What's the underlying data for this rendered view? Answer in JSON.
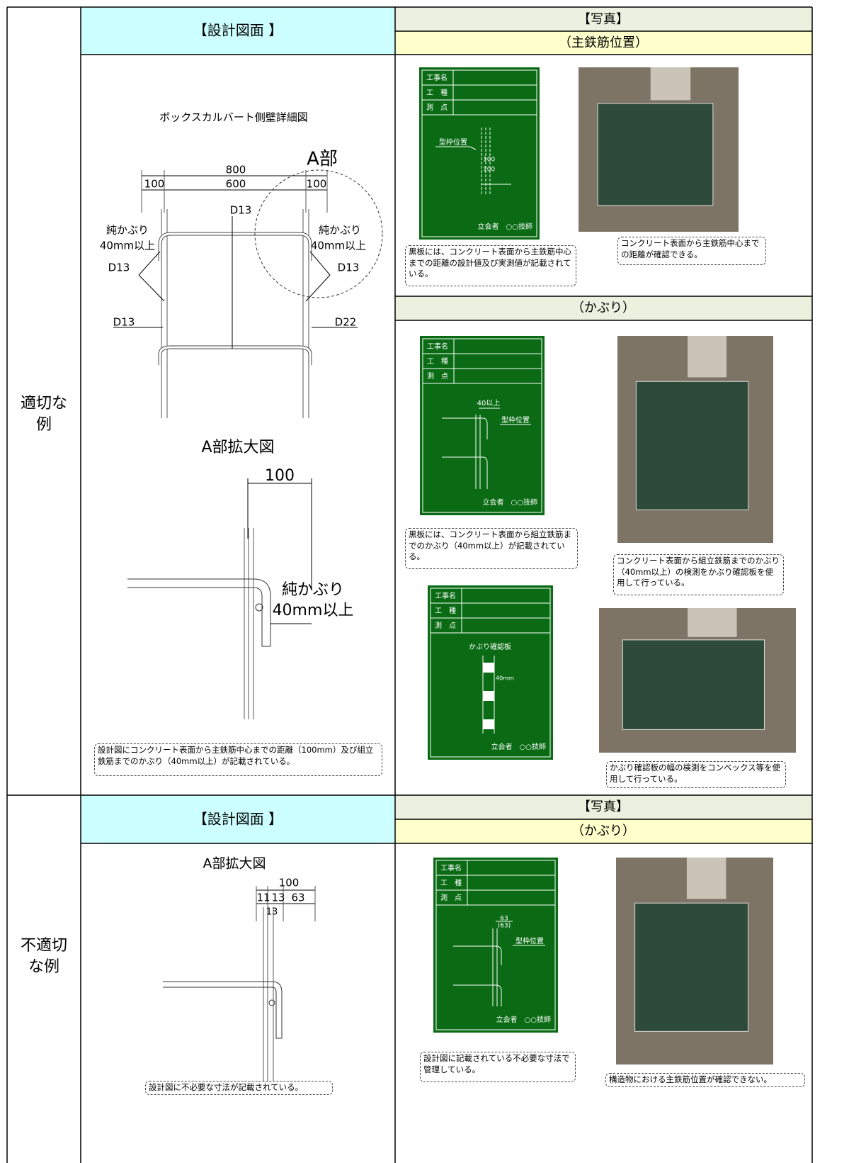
{
  "examples": [
    {
      "label": "適切な例",
      "design": {
        "header": "【設計図面 】",
        "title": "ボックスカルバート側壁詳細図",
        "section_labels": [
          "A部",
          "800",
          "100",
          "600",
          "100",
          "D13",
          "純かぶり",
          "40mm以上",
          "純かぶり",
          "40mm以上",
          "D13",
          "D13",
          "D13",
          "D22"
        ],
        "detail_title": "A部拡大図",
        "detail_labels": [
          "100",
          "純かぶり",
          "40mm以上"
        ],
        "note": "設計図にコンクリート表面から主鉄筋中心までの距離（100mm）及び組立鉄筋までのかぶり（40mm以上）が記載されている。"
      },
      "photos": {
        "header": "【写真】",
        "groups": [
          {
            "subheader": "（主鉄筋位置）",
            "items": [
              {
                "board": {
                  "fields": [
                    "工事名",
                    "工　種",
                    "測　点"
                  ],
                  "labels": [
                    "型枠位置",
                    "100",
                    "100"
                  ],
                  "witness": "立会者　○○技師"
                },
                "caption": "黒板には、コンクリート表面から主鉄筋中心までの距離の設計値及び実測値が記載されている。",
                "photo_caption": "コンクリート表面から主鉄筋中心までの距離が確認できる。"
              }
            ]
          },
          {
            "subheader": "（かぶり）",
            "items": [
              {
                "board": {
                  "fields": [
                    "工事名",
                    "工　種",
                    "測　点"
                  ],
                  "labels": [
                    "40以上",
                    "型枠位置"
                  ],
                  "witness": "立会者　○○技師"
                },
                "caption": "黒板には、コンクリート表面から組立鉄筋までのかぶり（40mm以上）が記載されている。",
                "photo_caption": "コンクリート表面から組立鉄筋までのかぶり（40mm以上）の検測をかぶり確認板を使用して行っている。"
              },
              {
                "board": {
                  "fields": [
                    "工事名",
                    "工　種",
                    "測　点"
                  ],
                  "labels": [
                    "かぶり確認板",
                    "40mm"
                  ],
                  "witness": "立会者　○○技師"
                },
                "photo_caption": "かぶり確認板の幅の検測をコンベックス等を使用して行っている。"
              }
            ]
          }
        ]
      }
    },
    {
      "label": "不適切な例",
      "design": {
        "header": "【設計図面 】",
        "detail_title": "A部拡大図",
        "detail_labels": [
          "100",
          "11",
          "13",
          "63",
          "13"
        ],
        "note": "設計図に不必要な寸法が記載されている。"
      },
      "photos": {
        "header": "【写真】",
        "groups": [
          {
            "subheader": "（かぶり）",
            "items": [
              {
                "board": {
                  "fields": [
                    "工事名",
                    "工　種",
                    "測　点"
                  ],
                  "labels": [
                    "63",
                    "(63)",
                    "型枠位置"
                  ],
                  "witness": "立会者　○○技師"
                },
                "caption": "設計図に記載されている不必要な寸法で管理している。",
                "photo_caption": "構造物における主鉄筋位置が確認できない。"
              }
            ]
          }
        ]
      }
    }
  ]
}
